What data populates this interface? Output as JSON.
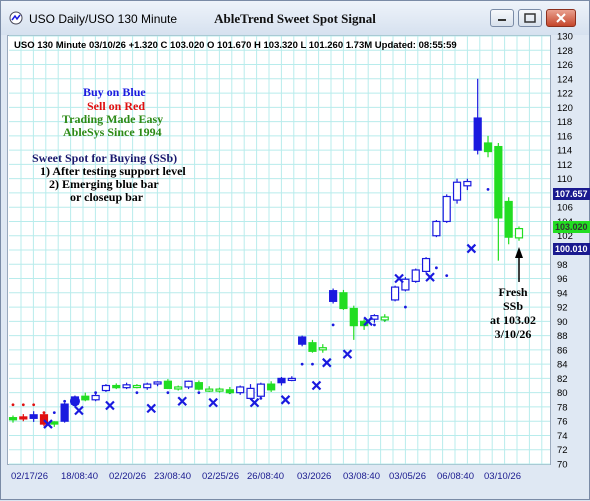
{
  "window": {
    "title": "USO  Daily/USO 130 Minute",
    "chart_title": "AbleTrend Sweet Spot Signal"
  },
  "info_line": "USO 130 Minute 03/10/26 +1.320 C 103.020 O 101.670 H 103.320 L 101.260 1.73M Updated: 08:55:59",
  "legend": {
    "buy": "Buy on Blue",
    "sell": "Sell on Red",
    "easy": "Trading Made Easy",
    "since": "AbleSys Since 1994",
    "ssb_title": "Sweet Spot for Buying (SSb)",
    "ssb_1": "1) After testing support level",
    "ssb_2": "2) Emerging blue bar",
    "ssb_3": "or closeup bar"
  },
  "annotation": {
    "line1": "Fresh",
    "line2": "SSb",
    "line3": "at 103.02",
    "line4": "3/10/26"
  },
  "price_badges": {
    "high": "107.657",
    "close": "103.020",
    "low": "100.010"
  },
  "colors": {
    "blue": "#1a1adf",
    "green": "#22dd22",
    "red": "#e01010",
    "olive": "#2d8a16",
    "navy": "#1a1a6e",
    "grid": "#b8ecec"
  },
  "chart_data": {
    "type": "candlestick",
    "ylim": [
      70,
      130
    ],
    "yticks": [
      70,
      72,
      74,
      76,
      78,
      80,
      82,
      84,
      86,
      88,
      90,
      92,
      94,
      96,
      98,
      100,
      102,
      104,
      106,
      108,
      110,
      112,
      114,
      116,
      118,
      120,
      122,
      124,
      126,
      128,
      130
    ],
    "xticks": [
      "02/17/26",
      "18/08:40",
      "02/20/26",
      "23/08:40",
      "02/25/26",
      "26/08:40",
      "03/2026",
      "03/08:40",
      "03/05/26",
      "06/08:40",
      "03/10/26"
    ],
    "bars": [
      {
        "o": 76.2,
        "h": 76.8,
        "l": 75.8,
        "c": 76.5,
        "color": "green",
        "style": "solid"
      },
      {
        "o": 76.6,
        "h": 77.0,
        "l": 76.0,
        "c": 76.4,
        "color": "red",
        "style": "solid"
      },
      {
        "o": 76.4,
        "h": 77.4,
        "l": 75.9,
        "c": 76.9,
        "color": "blue",
        "style": "solid"
      },
      {
        "o": 76.9,
        "h": 77.1,
        "l": 75.3,
        "c": 75.6,
        "color": "red",
        "style": "solid"
      },
      {
        "o": 75.6,
        "h": 76.0,
        "l": 75.2,
        "c": 75.9,
        "color": "green",
        "style": "solid"
      },
      {
        "o": 76.0,
        "h": 78.6,
        "l": 75.8,
        "c": 78.4,
        "color": "blue",
        "style": "solid"
      },
      {
        "o": 78.4,
        "h": 79.6,
        "l": 78.0,
        "c": 79.4,
        "color": "blue",
        "style": "solid"
      },
      {
        "o": 79.5,
        "h": 80.0,
        "l": 78.8,
        "c": 79.0,
        "color": "green",
        "style": "solid"
      },
      {
        "o": 79.0,
        "h": 80.0,
        "l": 78.8,
        "c": 79.6,
        "color": "blue",
        "style": "hollow"
      },
      {
        "o": 80.3,
        "h": 81.2,
        "l": 80.1,
        "c": 81.0,
        "color": "blue",
        "style": "hollow"
      },
      {
        "o": 81.0,
        "h": 81.3,
        "l": 80.5,
        "c": 80.7,
        "color": "green",
        "style": "solid"
      },
      {
        "o": 80.7,
        "h": 81.4,
        "l": 80.5,
        "c": 81.1,
        "color": "blue",
        "style": "hollow"
      },
      {
        "o": 81.0,
        "h": 81.2,
        "l": 80.6,
        "c": 80.8,
        "color": "green",
        "style": "hollow"
      },
      {
        "o": 80.7,
        "h": 81.4,
        "l": 80.4,
        "c": 81.2,
        "color": "blue",
        "style": "hollow"
      },
      {
        "o": 81.3,
        "h": 81.6,
        "l": 80.9,
        "c": 81.5,
        "color": "blue",
        "style": "hollow"
      },
      {
        "o": 81.6,
        "h": 81.9,
        "l": 80.5,
        "c": 80.6,
        "color": "green",
        "style": "solid"
      },
      {
        "o": 80.6,
        "h": 81.0,
        "l": 80.3,
        "c": 80.8,
        "color": "green",
        "style": "hollow"
      },
      {
        "o": 80.8,
        "h": 81.7,
        "l": 80.5,
        "c": 81.6,
        "color": "blue",
        "style": "hollow"
      },
      {
        "o": 81.4,
        "h": 81.7,
        "l": 80.3,
        "c": 80.5,
        "color": "green",
        "style": "solid"
      },
      {
        "o": 80.5,
        "h": 80.9,
        "l": 80.1,
        "c": 80.3,
        "color": "green",
        "style": "hollow"
      },
      {
        "o": 80.3,
        "h": 80.7,
        "l": 80.0,
        "c": 80.5,
        "color": "green",
        "style": "hollow"
      },
      {
        "o": 80.4,
        "h": 80.8,
        "l": 79.8,
        "c": 80.0,
        "color": "green",
        "style": "solid"
      },
      {
        "o": 80.0,
        "h": 81.0,
        "l": 79.7,
        "c": 80.8,
        "color": "blue",
        "style": "hollow"
      },
      {
        "o": 80.6,
        "h": 81.2,
        "l": 79.0,
        "c": 79.2,
        "color": "blue",
        "style": "hollow"
      },
      {
        "o": 79.5,
        "h": 81.4,
        "l": 79.3,
        "c": 81.2,
        "color": "blue",
        "style": "hollow"
      },
      {
        "o": 81.2,
        "h": 81.6,
        "l": 80.1,
        "c": 80.4,
        "color": "green",
        "style": "solid"
      },
      {
        "o": 81.4,
        "h": 82.2,
        "l": 81.0,
        "c": 82.0,
        "color": "blue",
        "style": "solid"
      },
      {
        "o": 82.0,
        "h": 82.3,
        "l": 81.6,
        "c": 81.8,
        "color": "blue",
        "style": "hollow"
      },
      {
        "o": 86.8,
        "h": 88.0,
        "l": 86.5,
        "c": 87.8,
        "color": "blue",
        "style": "solid"
      },
      {
        "o": 87.0,
        "h": 87.4,
        "l": 85.6,
        "c": 85.8,
        "color": "green",
        "style": "solid"
      },
      {
        "o": 86.0,
        "h": 86.8,
        "l": 85.6,
        "c": 86.3,
        "color": "green",
        "style": "hollow"
      },
      {
        "o": 92.8,
        "h": 94.6,
        "l": 92.5,
        "c": 94.3,
        "color": "blue",
        "style": "solid"
      },
      {
        "o": 94.0,
        "h": 94.4,
        "l": 91.6,
        "c": 91.8,
        "color": "green",
        "style": "solid"
      },
      {
        "o": 91.8,
        "h": 92.2,
        "l": 87.4,
        "c": 89.4,
        "color": "green",
        "style": "solid"
      },
      {
        "o": 89.4,
        "h": 90.3,
        "l": 88.8,
        "c": 90.0,
        "color": "green",
        "style": "solid"
      },
      {
        "o": 90.3,
        "h": 91.0,
        "l": 89.8,
        "c": 90.8,
        "color": "blue",
        "style": "hollow"
      },
      {
        "o": 90.2,
        "h": 91.0,
        "l": 89.9,
        "c": 90.6,
        "color": "green",
        "style": "hollow"
      },
      {
        "o": 93.0,
        "h": 95.0,
        "l": 92.8,
        "c": 94.8,
        "color": "blue",
        "style": "hollow"
      },
      {
        "o": 94.4,
        "h": 96.2,
        "l": 94.2,
        "c": 95.9,
        "color": "blue",
        "style": "hollow"
      },
      {
        "o": 95.6,
        "h": 97.4,
        "l": 95.4,
        "c": 97.2,
        "color": "blue",
        "style": "hollow"
      },
      {
        "o": 97.0,
        "h": 99.0,
        "l": 96.8,
        "c": 98.8,
        "color": "blue",
        "style": "hollow"
      },
      {
        "o": 102.0,
        "h": 104.2,
        "l": 101.8,
        "c": 104.0,
        "color": "blue",
        "style": "hollow"
      },
      {
        "o": 104.0,
        "h": 107.8,
        "l": 103.8,
        "c": 107.5,
        "color": "blue",
        "style": "hollow"
      },
      {
        "o": 107.0,
        "h": 110.0,
        "l": 106.5,
        "c": 109.5,
        "color": "blue",
        "style": "hollow"
      },
      {
        "o": 109.0,
        "h": 110.0,
        "l": 108.4,
        "c": 109.6,
        "color": "blue",
        "style": "hollow"
      },
      {
        "o": 114.0,
        "h": 124.0,
        "l": 113.4,
        "c": 118.5,
        "color": "blue",
        "style": "solid"
      },
      {
        "o": 115.0,
        "h": 116.0,
        "l": 113.0,
        "c": 113.8,
        "color": "green",
        "style": "solid"
      },
      {
        "o": 114.5,
        "h": 115.0,
        "l": 98.5,
        "c": 104.5,
        "color": "green",
        "style": "solid"
      },
      {
        "o": 106.8,
        "h": 107.4,
        "l": 100.8,
        "c": 101.8,
        "color": "green",
        "style": "solid"
      },
      {
        "o": 101.7,
        "h": 103.3,
        "l": 101.3,
        "c": 103.0,
        "color": "green",
        "style": "hollow"
      }
    ],
    "ssb_markers": [
      [
        3,
        75.6
      ],
      [
        6,
        77.5
      ],
      [
        9,
        78.2
      ],
      [
        13,
        77.8
      ],
      [
        16,
        78.8
      ],
      [
        19,
        78.6
      ],
      [
        23,
        78.6
      ],
      [
        26,
        79.0
      ],
      [
        29,
        81.0
      ],
      [
        30,
        84.2
      ],
      [
        32,
        85.4
      ],
      [
        34,
        90.0
      ],
      [
        37,
        96.0
      ],
      [
        40,
        96.2
      ],
      [
        44,
        100.2
      ]
    ],
    "stop_dots": [
      [
        0,
        78.3,
        "red"
      ],
      [
        1,
        78.3,
        "red"
      ],
      [
        2,
        78.3,
        "red"
      ],
      [
        3,
        77.2,
        "red"
      ],
      [
        4,
        77.2,
        "blue"
      ],
      [
        5,
        78.8,
        "blue"
      ],
      [
        8,
        80.0,
        "blue"
      ],
      [
        12,
        80.0,
        "blue"
      ],
      [
        15,
        80.0,
        "blue"
      ],
      [
        18,
        80.0,
        "blue"
      ],
      [
        21,
        80.0,
        "blue"
      ],
      [
        24,
        79.2,
        "blue"
      ],
      [
        28,
        84.0,
        "blue"
      ],
      [
        29,
        84.0,
        "blue"
      ],
      [
        31,
        89.5,
        "blue"
      ],
      [
        33,
        89.5,
        "blue"
      ],
      [
        35,
        89.5,
        "blue"
      ],
      [
        36,
        90.2,
        "blue"
      ],
      [
        38,
        92.0,
        "blue"
      ],
      [
        41,
        97.5,
        "blue"
      ],
      [
        42,
        96.4,
        "blue"
      ],
      [
        43,
        108.5,
        "blue"
      ],
      [
        46,
        108.5,
        "blue"
      ],
      [
        47,
        108.5,
        "blue"
      ]
    ],
    "big_dots": [
      [
        6,
        78.8,
        "blue"
      ],
      [
        3,
        76.1,
        "red"
      ]
    ]
  }
}
